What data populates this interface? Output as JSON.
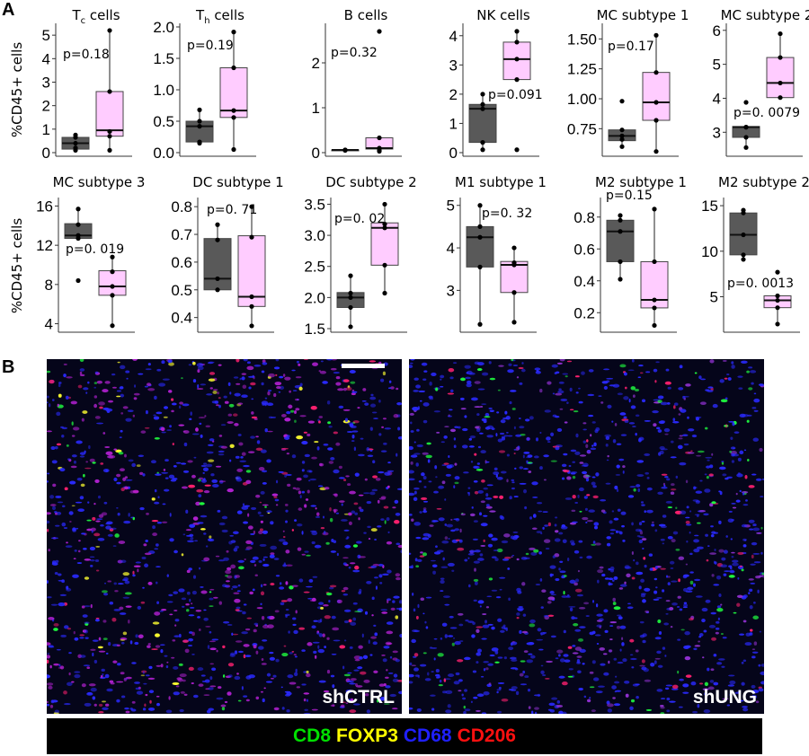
{
  "panel_labels": {
    "a": "A",
    "b": "B"
  },
  "ylabel": "%CD45+ cells",
  "colors": {
    "ctrl_box": "#595959",
    "sh_box": "#ffccff",
    "points": "#000000"
  },
  "chart_data": [
    {
      "type": "box",
      "title": {
        "main": "T",
        "sub": "c",
        "rest": " cells"
      },
      "ylim": [
        0,
        5.35
      ],
      "yticks": [
        0,
        1,
        2,
        3,
        4,
        5
      ],
      "tick_labels": [
        "0",
        "1",
        "2",
        "3",
        "4",
        "5"
      ],
      "p_label": "p=0.18",
      "groups": [
        {
          "q1": 0.15,
          "median": 0.4,
          "q3": 0.65,
          "wlo": 0.1,
          "whi": 0.75,
          "points": [
            0.1,
            0.2,
            0.4,
            0.65,
            0.75
          ]
        },
        {
          "q1": 0.7,
          "median": 0.95,
          "q3": 2.6,
          "wlo": 0.1,
          "whi": 5.2,
          "points": [
            0.1,
            0.7,
            0.9,
            2.6,
            5.2
          ]
        }
      ]
    },
    {
      "type": "box",
      "title": {
        "main": "T",
        "sub": "h",
        "rest": " cells"
      },
      "ylim": [
        0,
        2.0
      ],
      "yticks": [
        0,
        0.5,
        1,
        1.5,
        2
      ],
      "tick_labels": [
        "0.0",
        "0.5",
        "1.0",
        "1.5",
        "2.0"
      ],
      "p_label": "p=0.19",
      "groups": [
        {
          "q1": 0.17,
          "median": 0.42,
          "q3": 0.5,
          "wlo": 0.15,
          "whi": 0.68,
          "points": [
            0.15,
            0.17,
            0.42,
            0.5,
            0.68
          ]
        },
        {
          "q1": 0.56,
          "median": 0.67,
          "q3": 1.35,
          "wlo": 0.05,
          "whi": 1.92,
          "points": [
            0.05,
            0.56,
            0.67,
            1.35,
            1.92
          ]
        }
      ]
    },
    {
      "type": "box",
      "title": {
        "main": "B cells",
        "sub": "",
        "rest": ""
      },
      "ylim": [
        0,
        2.8
      ],
      "yticks": [
        0,
        1,
        2
      ],
      "tick_labels": [
        "0",
        "1",
        "2"
      ],
      "p_label": "p=0.32",
      "groups": [
        {
          "q1": 0.05,
          "median": 0.06,
          "q3": 0.06,
          "wlo": 0.05,
          "whi": 0.06,
          "points": [
            0.05,
            0.06,
            0.06
          ]
        },
        {
          "q1": 0.08,
          "median": 0.1,
          "q3": 0.33,
          "wlo": 0.03,
          "whi": 0.33,
          "points": [
            0.03,
            0.05,
            0.1,
            0.33,
            2.7
          ]
        }
      ]
    },
    {
      "type": "box",
      "title": {
        "main": "NK cells",
        "sub": "",
        "rest": ""
      },
      "ylim": [
        0,
        4.3
      ],
      "yticks": [
        0,
        1,
        2,
        3,
        4
      ],
      "tick_labels": [
        "0",
        "1",
        "2",
        "3",
        "4"
      ],
      "p_label": "p=0.091",
      "groups": [
        {
          "q1": 0.35,
          "median": 1.5,
          "q3": 1.65,
          "wlo": 0.1,
          "whi": 2.0,
          "points": [
            0.1,
            0.35,
            1.5,
            1.65,
            2.0
          ]
        },
        {
          "q1": 2.5,
          "median": 3.2,
          "q3": 3.78,
          "wlo": 2.5,
          "whi": 4.15,
          "points": [
            0.1,
            2.5,
            3.2,
            3.78,
            4.15
          ]
        }
      ]
    },
    {
      "type": "box",
      "title": {
        "main": "MC subtype 1",
        "sub": "",
        "rest": ""
      },
      "ylim": [
        0.55,
        1.6
      ],
      "yticks": [
        0.75,
        1.0,
        1.25,
        1.5
      ],
      "tick_labels": [
        "0.75",
        "1.00",
        "1.25",
        "1.50"
      ],
      "p_label": "p=0.17",
      "groups": [
        {
          "q1": 0.65,
          "median": 0.69,
          "q3": 0.74,
          "wlo": 0.6,
          "whi": 0.74,
          "points": [
            0.6,
            0.66,
            0.69,
            0.74,
            0.98
          ]
        },
        {
          "q1": 0.82,
          "median": 0.97,
          "q3": 1.22,
          "wlo": 0.56,
          "whi": 1.53,
          "points": [
            0.56,
            0.82,
            0.97,
            1.22,
            1.53
          ]
        }
      ]
    },
    {
      "type": "box",
      "title": {
        "main": "MC subtype 2",
        "sub": "",
        "rest": ""
      },
      "ylim": [
        2.4,
        6.1
      ],
      "yticks": [
        3,
        4,
        5,
        6
      ],
      "tick_labels": [
        "3",
        "4",
        "5",
        "6"
      ],
      "p_label": "p=0. 0079",
      "groups": [
        {
          "q1": 2.85,
          "median": 3.15,
          "q3": 3.17,
          "wlo": 2.55,
          "whi": 3.17,
          "points": [
            2.55,
            2.85,
            3.15,
            3.15,
            3.88
          ]
        },
        {
          "q1": 4.02,
          "median": 4.45,
          "q3": 5.2,
          "wlo": 4.02,
          "whi": 5.9,
          "points": [
            4.02,
            4.45,
            5.2,
            5.9
          ]
        }
      ]
    },
    {
      "type": "box",
      "title": {
        "main": "MC subtype 3",
        "sub": "",
        "rest": ""
      },
      "ylim": [
        3.5,
        16.5
      ],
      "yticks": [
        4,
        8,
        12,
        16
      ],
      "tick_labels": [
        "4",
        "8",
        "12",
        "16"
      ],
      "p_label": "p=0. 019",
      "groups": [
        {
          "q1": 12.7,
          "median": 13.0,
          "q3": 14.2,
          "wlo": 12.7,
          "whi": 15.7,
          "points": [
            8.4,
            12.7,
            13.0,
            14.1,
            15.7
          ]
        },
        {
          "q1": 6.9,
          "median": 7.8,
          "q3": 9.4,
          "wlo": 3.8,
          "whi": 10.8,
          "points": [
            3.8,
            6.9,
            7.8,
            9.3,
            10.8
          ]
        }
      ]
    },
    {
      "type": "box",
      "title": {
        "main": "DC subtype 1",
        "sub": "",
        "rest": ""
      },
      "ylim": [
        0.36,
        0.82
      ],
      "yticks": [
        0.4,
        0.5,
        0.6,
        0.7,
        0.8
      ],
      "tick_labels": [
        "0.4",
        "0.5",
        "0.6",
        "0.7",
        "0.8"
      ],
      "p_label": "p=0. 71",
      "groups": [
        {
          "q1": 0.5,
          "median": 0.54,
          "q3": 0.685,
          "wlo": 0.5,
          "whi": 0.735,
          "points": [
            0.5,
            0.54,
            0.68,
            0.735
          ]
        },
        {
          "q1": 0.44,
          "median": 0.475,
          "q3": 0.695,
          "wlo": 0.37,
          "whi": 0.8,
          "points": [
            0.37,
            0.44,
            0.475,
            0.69,
            0.8
          ]
        }
      ]
    },
    {
      "type": "box",
      "title": {
        "main": "DC subtype 2",
        "sub": "",
        "rest": ""
      },
      "ylim": [
        1.5,
        3.55
      ],
      "yticks": [
        1.5,
        2.0,
        2.5,
        3.0,
        3.5
      ],
      "tick_labels": [
        "1.5",
        "2.0",
        "2.5",
        "3.0",
        "3.5"
      ],
      "p_label": "p=0. 02",
      "groups": [
        {
          "q1": 1.84,
          "median": 2.0,
          "q3": 2.08,
          "wlo": 1.53,
          "whi": 2.35,
          "points": [
            1.53,
            1.84,
            2.0,
            2.07,
            2.35
          ]
        },
        {
          "q1": 2.52,
          "median": 3.12,
          "q3": 3.2,
          "wlo": 2.07,
          "whi": 3.5,
          "points": [
            2.07,
            2.52,
            3.12,
            3.18,
            3.5
          ]
        }
      ]
    },
    {
      "type": "box",
      "title": {
        "main": "M1 subtype 1",
        "sub": "",
        "rest": ""
      },
      "ylim": [
        2.1,
        5.1
      ],
      "yticks": [
        3,
        4,
        5
      ],
      "tick_labels": [
        "3",
        "4",
        "5"
      ],
      "p_label": "p=0. 32",
      "groups": [
        {
          "q1": 3.55,
          "median": 4.25,
          "q3": 4.5,
          "wlo": 2.2,
          "whi": 5.0,
          "points": [
            2.2,
            3.55,
            4.25,
            4.5,
            5.0
          ]
        },
        {
          "q1": 2.95,
          "median": 3.6,
          "q3": 3.68,
          "wlo": 2.25,
          "whi": 4.0,
          "points": [
            2.25,
            2.95,
            3.6,
            3.65,
            4.0
          ]
        }
      ]
    },
    {
      "type": "box",
      "title": {
        "main": "M2 subtype 1",
        "sub": "",
        "rest": ""
      },
      "ylim": [
        0.1,
        0.9
      ],
      "yticks": [
        0.2,
        0.4,
        0.6,
        0.8
      ],
      "tick_labels": [
        "0.2",
        "0.4",
        "0.6",
        "0.8"
      ],
      "p_label": "p=0.15",
      "groups": [
        {
          "q1": 0.52,
          "median": 0.71,
          "q3": 0.78,
          "wlo": 0.41,
          "whi": 0.81,
          "points": [
            0.41,
            0.52,
            0.71,
            0.78,
            0.81
          ]
        },
        {
          "q1": 0.23,
          "median": 0.28,
          "q3": 0.52,
          "wlo": 0.12,
          "whi": 0.85,
          "points": [
            0.12,
            0.23,
            0.28,
            0.52,
            0.85
          ]
        }
      ]
    },
    {
      "type": "box",
      "title": {
        "main": "M2 subtype 2",
        "sub": "",
        "rest": ""
      },
      "ylim": [
        1.5,
        15.5
      ],
      "yticks": [
        5,
        10,
        15
      ],
      "tick_labels": [
        "5",
        "10",
        "15"
      ],
      "p_label": "p=0. 0013",
      "groups": [
        {
          "q1": 9.6,
          "median": 11.8,
          "q3": 14.2,
          "wlo": 9.1,
          "whi": 14.5,
          "points": [
            9.1,
            9.6,
            11.8,
            14.2,
            14.5
          ]
        },
        {
          "q1": 3.8,
          "median": 4.6,
          "q3": 5.1,
          "wlo": 2.0,
          "whi": 5.1,
          "points": [
            2.0,
            3.8,
            4.6,
            5.1,
            7.7
          ]
        }
      ]
    }
  ],
  "images": [
    {
      "label": "shCTRL"
    },
    {
      "label": "shUNG"
    }
  ],
  "legend": [
    {
      "text": "CD8",
      "color": "#00e000"
    },
    {
      "text": "FOXP3",
      "color": "#ffff00"
    },
    {
      "text": "CD68",
      "color": "#2020ff"
    },
    {
      "text": "CD206",
      "color": "#ff1010"
    }
  ]
}
